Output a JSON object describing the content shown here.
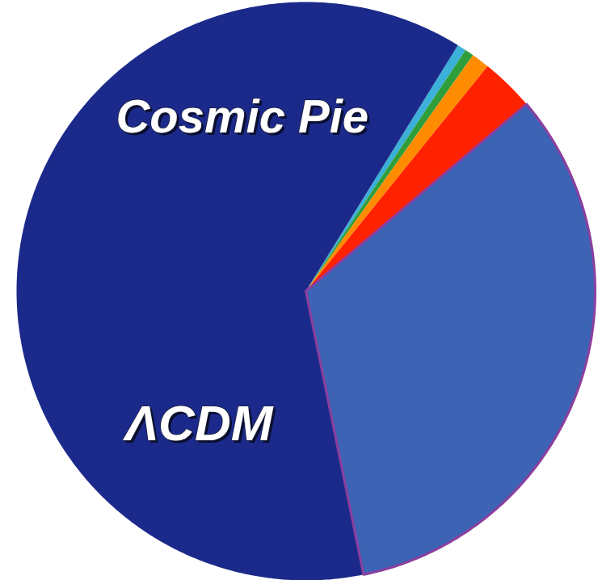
{
  "chart_data": {
    "type": "pie",
    "title": "Cosmic Pie",
    "annotations": [
      "ΛCDM"
    ],
    "categories": [
      null,
      null,
      null,
      null,
      null,
      null
    ],
    "values": [
      0.5,
      0.5,
      1,
      3,
      33,
      62
    ],
    "colors": [
      "#3bb0d8",
      "#2f9e3a",
      "#ff8c00",
      "#ff2200",
      "#3d63b4",
      "#1b2a8a"
    ],
    "tick_labels": false
  }
}
